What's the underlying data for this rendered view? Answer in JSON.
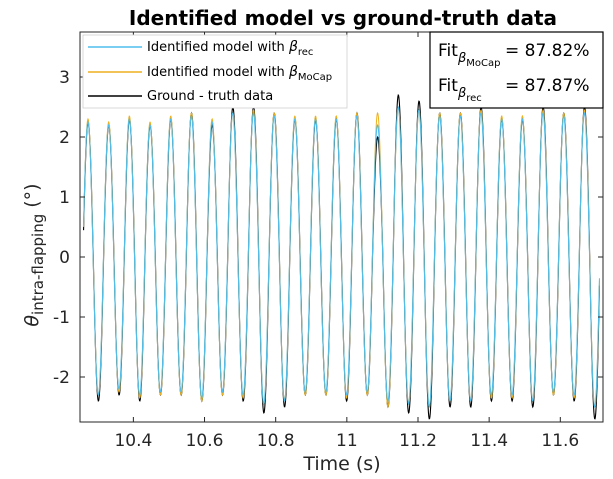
{
  "chart_data": {
    "type": "line",
    "title": "Identified model vs ground-truth data",
    "xlabel": "Time (s)",
    "ylabel": {
      "symbol": "θ",
      "subscript": "intra-flapping",
      "unit": "(°)"
    },
    "xlim": [
      10.25,
      11.72
    ],
    "ylim": [
      -2.75,
      3.75
    ],
    "x_ticks": [
      10.4,
      10.6,
      10.8,
      11,
      11.2,
      11.4,
      11.6
    ],
    "x_tick_labels": [
      "10.4",
      "10.6",
      "10.8",
      "11",
      "11.2",
      "11.4",
      "11.6"
    ],
    "y_ticks": [
      -2,
      -1,
      0,
      1,
      2,
      3
    ],
    "y_tick_labels": [
      "-2",
      "-1",
      "0",
      "1",
      "2",
      "3"
    ],
    "grid": false,
    "legend": {
      "placement": "top-left",
      "entries": [
        {
          "text": "Identified model with ",
          "symbol": "β",
          "subscript": "rec",
          "color": "#4DBEEE"
        },
        {
          "text": "Identified model with ",
          "symbol": "β",
          "subscript": "MoCap",
          "color": "#EDB120"
        },
        {
          "text": "Ground - truth data",
          "symbol": "",
          "subscript": "",
          "color": "#000000"
        }
      ]
    },
    "annotation": {
      "placement": "top-right",
      "lines": [
        {
          "text": "Fit",
          "subscript": "β",
          "subsubscript": "MoCap",
          "value": "= 87.82%"
        },
        {
          "text": "Fit",
          "subscript": "β",
          "subsubscript": "rec",
          "value": "= 87.87%"
        }
      ]
    },
    "signal": {
      "t_start": 10.26,
      "t_end": 11.71,
      "frequency_hz": 17.2,
      "phase": 0.2
    },
    "series": [
      {
        "name": "Ground - truth data",
        "color": "#000000",
        "peaks": [
          2.25,
          2.2,
          2.3,
          2.2,
          2.3,
          2.4,
          2.2,
          2.5,
          2.5,
          2.4,
          2.3,
          2.3,
          2.3,
          2.4,
          2.0,
          2.7,
          2.6,
          2.4,
          2.4,
          2.5,
          2.3,
          2.3,
          2.5,
          2.4,
          2.5
        ],
        "troughs": [
          -2.4,
          -2.3,
          -2.4,
          -2.3,
          -2.3,
          -2.4,
          -2.3,
          -2.4,
          -2.6,
          -2.5,
          -2.3,
          -2.3,
          -2.4,
          -2.3,
          -2.5,
          -2.6,
          -2.7,
          -2.5,
          -2.5,
          -2.4,
          -2.4,
          -2.5,
          -2.3,
          -2.4,
          -2.7
        ]
      },
      {
        "name": "Identified model with β_MoCap",
        "color": "#EDB120",
        "peaks": [
          2.3,
          2.25,
          2.35,
          2.25,
          2.35,
          2.4,
          2.3,
          2.4,
          2.45,
          2.4,
          2.35,
          2.35,
          2.35,
          2.4,
          2.4,
          2.5,
          2.45,
          2.4,
          2.4,
          2.45,
          2.35,
          2.35,
          2.45,
          2.4,
          2.45
        ],
        "troughs": [
          -2.3,
          -2.25,
          -2.35,
          -2.3,
          -2.3,
          -2.4,
          -2.3,
          -2.35,
          -2.45,
          -2.4,
          -2.3,
          -2.3,
          -2.35,
          -2.3,
          -2.5,
          -2.45,
          -2.5,
          -2.4,
          -2.4,
          -2.35,
          -2.35,
          -2.4,
          -2.3,
          -2.35,
          -2.5
        ]
      },
      {
        "name": "Identified model with β_rec",
        "color": "#4DBEEE",
        "peaks": [
          2.25,
          2.2,
          2.3,
          2.2,
          2.3,
          2.35,
          2.25,
          2.4,
          2.4,
          2.35,
          2.3,
          2.3,
          2.3,
          2.35,
          2.2,
          2.5,
          2.45,
          2.35,
          2.35,
          2.4,
          2.3,
          2.3,
          2.4,
          2.35,
          2.4
        ],
        "troughs": [
          -2.3,
          -2.2,
          -2.3,
          -2.25,
          -2.25,
          -2.35,
          -2.25,
          -2.3,
          -2.45,
          -2.4,
          -2.25,
          -2.25,
          -2.3,
          -2.25,
          -2.4,
          -2.45,
          -2.5,
          -2.4,
          -2.4,
          -2.3,
          -2.3,
          -2.4,
          -2.25,
          -2.3,
          -2.5
        ]
      }
    ]
  }
}
